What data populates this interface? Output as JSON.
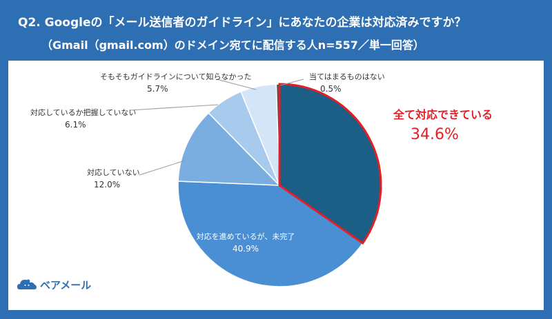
{
  "header": {
    "title_line1": "Q2. Googleの「メール送信者のガイドライン」にあなたの企業は対応済みですか？",
    "title_line2": "（Gmail（gmail.com）のドメイン宛てに配信する人n=557／単一回答）"
  },
  "logo": {
    "icon": "bear-cloud-icon",
    "text": "ベアメール"
  },
  "chart_data": {
    "type": "pie",
    "start_angle_deg": 0,
    "direction": "clockwise",
    "slices": [
      {
        "label": "全て対応できている",
        "value": 34.6,
        "value_text": "34.6%",
        "color": "#1b5f87",
        "highlight": true
      },
      {
        "label": "対応を進めているが、未完了",
        "value": 40.9,
        "value_text": "40.9%",
        "color": "#4a8fd3"
      },
      {
        "label": "対応していない",
        "value": 12.0,
        "value_text": "12.0%",
        "color": "#7aaee0"
      },
      {
        "label": "対応しているか把握していない",
        "value": 6.1,
        "value_text": "6.1%",
        "color": "#a8cbed"
      },
      {
        "label": "そもそもガイドラインについて知らなかった",
        "value": 5.7,
        "value_text": "5.7%",
        "color": "#d4e5f7"
      },
      {
        "label": "当てはまるものはない",
        "value": 0.5,
        "value_text": "0.5%",
        "color": "#555555"
      }
    ],
    "highlight_color": "#e31e24"
  }
}
